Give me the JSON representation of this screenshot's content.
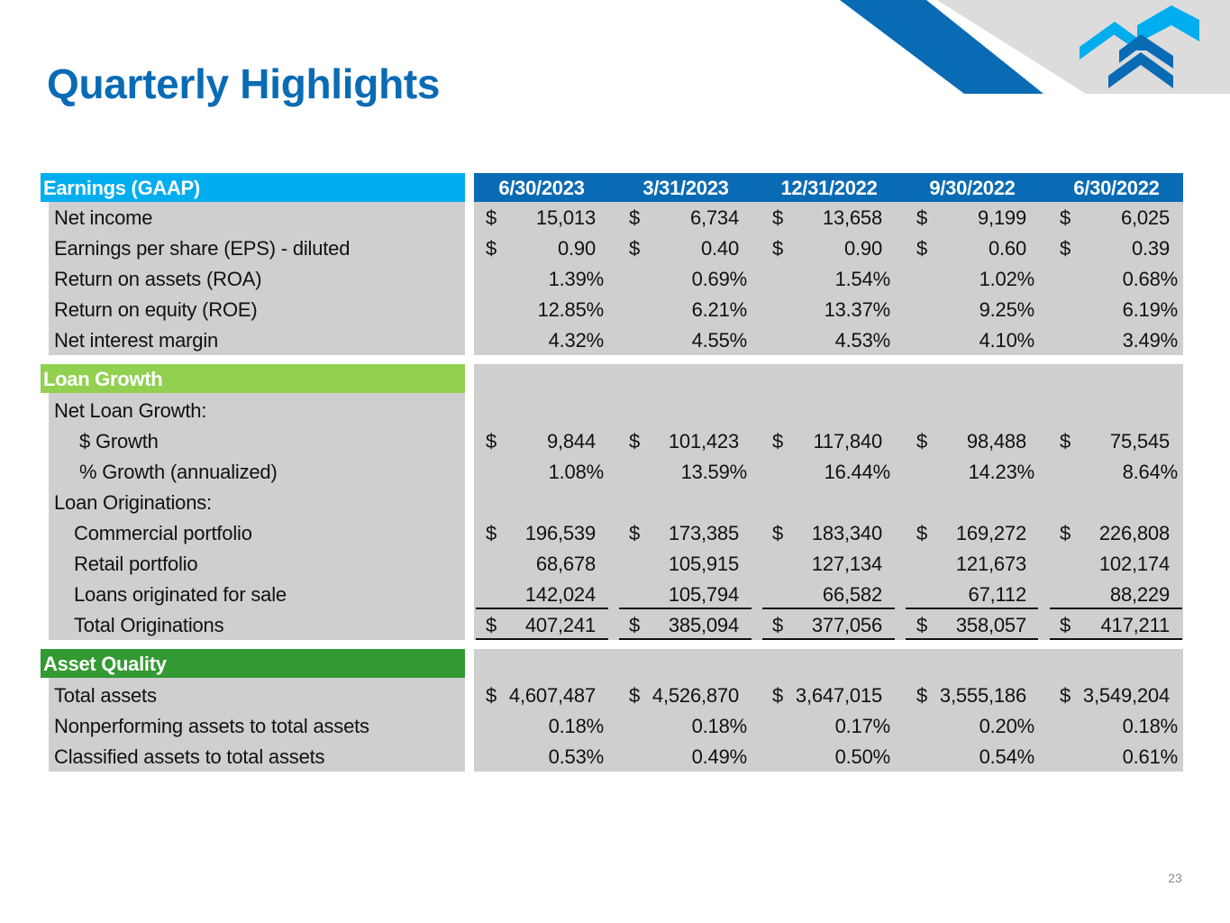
{
  "title": "Quarterly Highlights",
  "page_number": "23",
  "colors": {
    "title_blue": "#0a6bb5",
    "earnings_header": "#00aeef",
    "loan_header": "#92d050",
    "asset_header": "#339933",
    "cell_gray": "#d0cfcf"
  },
  "periods": [
    "6/30/2023",
    "3/31/2023",
    "12/31/2022",
    "9/30/2022",
    "6/30/2022"
  ],
  "earnings": {
    "header": "Earnings (GAAP)",
    "rows": [
      {
        "label": "Net income",
        "dollar": true,
        "values": [
          "15,013",
          "6,734",
          "13,658",
          "9,199",
          "6,025"
        ]
      },
      {
        "label": "Earnings per share (EPS) - diluted",
        "dollar": true,
        "values": [
          "0.90",
          "0.40",
          "0.90",
          "0.60",
          "0.39"
        ]
      },
      {
        "label": "Return on assets (ROA)",
        "dollar": false,
        "values": [
          "1.39%",
          "0.69%",
          "1.54%",
          "1.02%",
          "0.68%"
        ]
      },
      {
        "label": "Return on equity (ROE)",
        "dollar": false,
        "values": [
          "12.85%",
          "6.21%",
          "13.37%",
          "9.25%",
          "6.19%"
        ]
      },
      {
        "label": "Net interest margin",
        "dollar": false,
        "values": [
          "4.32%",
          "4.55%",
          "4.53%",
          "4.10%",
          "3.49%"
        ]
      }
    ]
  },
  "loan_growth": {
    "header": "Loan Growth",
    "rows": [
      {
        "label": "Net Loan Growth:",
        "indent": 0,
        "dollar": false,
        "values": []
      },
      {
        "label": "$ Growth",
        "indent": 2,
        "dollar": true,
        "values": [
          "9,844",
          "101,423",
          "117,840",
          "98,488",
          "75,545"
        ]
      },
      {
        "label": "% Growth (annualized)",
        "indent": 2,
        "dollar": false,
        "values": [
          "1.08%",
          "13.59%",
          "16.44%",
          "14.23%",
          "8.64%"
        ]
      },
      {
        "label": "Loan Originations:",
        "indent": 0,
        "dollar": false,
        "values": []
      },
      {
        "label": "Commercial portfolio",
        "indent": 1,
        "dollar": true,
        "values": [
          "196,539",
          "173,385",
          "183,340",
          "169,272",
          "226,808"
        ]
      },
      {
        "label": "Retail portfolio",
        "indent": 1,
        "dollar": false,
        "values": [
          "68,678",
          "105,915",
          "127,134",
          "121,673",
          "102,174"
        ]
      },
      {
        "label": "Loans originated for sale",
        "indent": 1,
        "dollar": false,
        "values": [
          "142,024",
          "105,794",
          "66,582",
          "67,112",
          "88,229"
        ]
      },
      {
        "label": "Total Originations",
        "indent": 1,
        "dollar": true,
        "values": [
          "407,241",
          "385,094",
          "377,056",
          "358,057",
          "417,211"
        ]
      }
    ]
  },
  "asset_quality": {
    "header": "Asset Quality",
    "rows": [
      {
        "label": "Total assets",
        "dollar": true,
        "values": [
          "4,607,487",
          "4,526,870",
          "3,647,015",
          "3,555,186",
          "3,549,204"
        ]
      },
      {
        "label": "Nonperforming assets to total assets",
        "dollar": false,
        "values": [
          "0.18%",
          "0.18%",
          "0.17%",
          "0.20%",
          "0.18%"
        ]
      },
      {
        "label": "Classified assets to total assets",
        "dollar": false,
        "values": [
          "0.53%",
          "0.49%",
          "0.50%",
          "0.54%",
          "0.61%"
        ]
      }
    ]
  },
  "currency_symbol": "$"
}
